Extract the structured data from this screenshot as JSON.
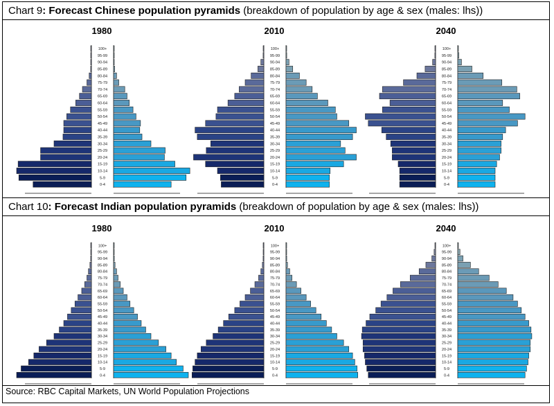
{
  "chart_data": [
    {
      "type": "bar",
      "title_prefix": "Chart 9",
      "title_bold": ": Forecast Chinese population pyramids",
      "title_rest": " (breakdown of population by age & sex (males: lhs))",
      "age_groups": [
        "0-4",
        "5-9",
        "10-14",
        "15-19",
        "20-24",
        "25-29",
        "30-34",
        "35-39",
        "40-44",
        "45-49",
        "50-54",
        "55-59",
        "60-64",
        "65-69",
        "70-74",
        "75-79",
        "80-84",
        "85-89",
        "90-94",
        "95-99",
        "100+"
      ],
      "pyramids": [
        {
          "year": "1980",
          "males": [
            78,
            97,
            100,
            98,
            68,
            68,
            50,
            38,
            37,
            37,
            33,
            28,
            21,
            16,
            12,
            6,
            3,
            1,
            0.5,
            0.3,
            0.2
          ],
          "females": [
            77,
            97,
            102,
            82,
            68,
            69,
            50,
            38,
            35,
            36,
            30,
            26,
            21,
            18,
            15,
            7,
            4,
            1.5,
            0.5,
            0.3,
            0.2
          ]
        },
        {
          "year": "2010",
          "males": [
            57,
            58,
            62,
            78,
            94,
            77,
            71,
            89,
            92,
            78,
            64,
            62,
            48,
            39,
            33,
            25,
            17,
            8,
            4,
            1,
            0.5
          ],
          "females": [
            58,
            58,
            59,
            77,
            94,
            79,
            73,
            89,
            94,
            84,
            68,
            66,
            56,
            42,
            35,
            27,
            18,
            9,
            4,
            1,
            0.5
          ]
        },
        {
          "year": "2040",
          "males": [
            48,
            48,
            48,
            50,
            58,
            58,
            60,
            66,
            72,
            90,
            94,
            71,
            61,
            75,
            71,
            43,
            25,
            14,
            4,
            1,
            0.5
          ],
          "females": [
            50,
            50,
            50,
            52,
            56,
            58,
            58,
            60,
            64,
            80,
            90,
            69,
            60,
            83,
            79,
            59,
            34,
            19,
            5,
            1.5,
            0.5
          ]
        }
      ]
    },
    {
      "type": "bar",
      "title_prefix": "Chart 10",
      "title_bold": ": Forecast Indian population pyramids",
      "title_rest": " (breakdown of population by age & sex (males: lhs))",
      "age_groups": [
        "0-4",
        "5-9",
        "10-14",
        "15-19",
        "20-24",
        "25-29",
        "30-34",
        "35-39",
        "40-44",
        "45-49",
        "50-54",
        "55-59",
        "60-64",
        "65-69",
        "70-74",
        "75-79",
        "80-84",
        "85-89",
        "90-94",
        "95-99",
        "100+"
      ],
      "pyramids": [
        {
          "year": "1980",
          "males": [
            100,
            94,
            84,
            77,
            70,
            60,
            50,
            43,
            37,
            32,
            27,
            22,
            18,
            13,
            9,
            6,
            4,
            2,
            1,
            0.5,
            0.3
          ],
          "females": [
            100,
            93,
            84,
            77,
            70,
            60,
            50,
            43,
            37,
            32,
            27,
            22,
            18,
            13,
            9,
            6,
            4,
            2,
            1,
            0.5,
            0.3
          ]
        },
        {
          "year": "2010",
          "males": [
            96,
            95,
            92,
            89,
            84,
            77,
            68,
            61,
            54,
            47,
            39,
            32,
            25,
            18,
            12,
            7,
            4,
            2,
            1,
            0.5,
            0.3
          ],
          "females": [
            96,
            95,
            92,
            89,
            84,
            77,
            68,
            61,
            54,
            47,
            40,
            33,
            27,
            20,
            14,
            8,
            5,
            2,
            1,
            0.5,
            0.3
          ]
        },
        {
          "year": "2040",
          "males": [
            90,
            92,
            94,
            95,
            97,
            97,
            99,
            98,
            93,
            88,
            80,
            73,
            65,
            57,
            47,
            34,
            22,
            13,
            5,
            2,
            0.5
          ],
          "females": [
            90,
            92,
            94,
            95,
            97,
            97,
            99,
            98,
            95,
            90,
            85,
            80,
            74,
            65,
            54,
            42,
            28,
            17,
            7,
            3,
            0.5
          ]
        }
      ]
    }
  ],
  "colors": {
    "dark_bars": [
      "#0a1d56",
      "#15286a",
      "#1e3478",
      "#2a4386",
      "#3a5190",
      "#4b5e96",
      "#5a6a9a",
      "#6c779c",
      "#7a839c"
    ],
    "light_bars": [
      "#0fb2ee",
      "#1aa8e2",
      "#2aa0d6",
      "#379acc",
      "#4898c4",
      "#5a98bc",
      "#6b9bb6",
      "#7aa0b2",
      "#8aa7b0"
    ],
    "axis": "#555555"
  },
  "source": "Source: RBC Capital Markets, UN World Population Projections"
}
